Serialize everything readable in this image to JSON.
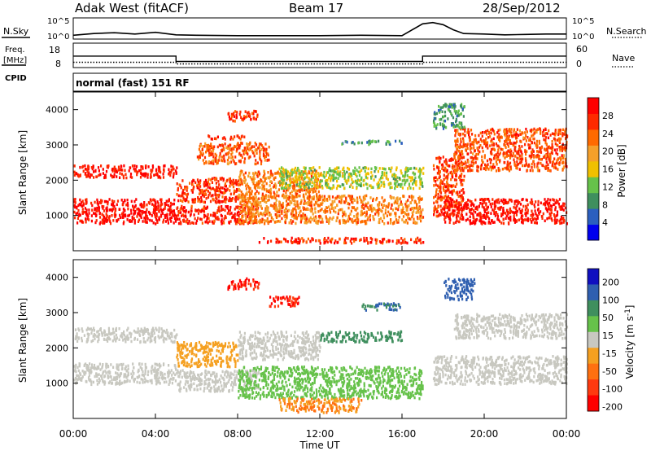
{
  "header": {
    "station": "Adak West (fitACF)",
    "beam": "Beam 17",
    "date": "28/Sep/2012"
  },
  "colors": {
    "power_scale": [
      "#0000ee",
      "#2b5fbf",
      "#3f8f5e",
      "#66c24a",
      "#f0c000",
      "#f5a02a",
      "#ff6a00",
      "#ff2a00",
      "#ff0000"
    ],
    "velocity_scale": [
      "#1010c0",
      "#2f5fb0",
      "#3f8f5e",
      "#66c24a",
      "#c8c8c0",
      "#f5a020",
      "#ff7010",
      "#ff3a10",
      "#ff0000"
    ],
    "ground_scatter": "#c8c8c0"
  },
  "chart_data": [
    {
      "type": "line",
      "name": "nsky-nsearch",
      "label_left": "N.Sky",
      "label_right": "N.Search",
      "yticks": [
        "10^0",
        "10^5"
      ],
      "x": [
        0,
        1,
        2,
        3,
        4,
        5,
        6,
        8,
        10,
        12,
        14,
        16,
        17,
        17.5,
        18,
        18.5,
        19,
        20,
        21,
        22,
        23,
        24
      ],
      "nsky_log10": [
        0.9,
        1.3,
        1.5,
        1.2,
        1.6,
        1.0,
        0.9,
        0.8,
        0.8,
        0.8,
        0.9,
        0.8,
        3.6,
        3.9,
        3.4,
        2.2,
        1.3,
        1.2,
        1.0,
        1.1,
        1.2,
        1.2
      ],
      "xlim": [
        0,
        24
      ],
      "ylim": [
        0,
        5
      ]
    },
    {
      "type": "line",
      "name": "freq-nave",
      "label_left": "Freq. [MHz]",
      "label_right": "Nave",
      "yticks_left": [
        "8",
        "18"
      ],
      "yticks_right": [
        "0",
        "60"
      ],
      "freq_x": [
        0,
        5,
        5,
        17,
        17,
        24
      ],
      "freq_y": [
        12.7,
        12.7,
        10.5,
        10.5,
        12.7,
        12.7
      ],
      "nave_x": [
        0,
        5,
        5,
        17,
        17,
        24
      ],
      "nave_y": [
        13,
        13,
        9,
        9,
        13,
        13
      ],
      "xlim": [
        0,
        24
      ]
    },
    {
      "type": "heatmap",
      "name": "power",
      "ylabel": "Slant Range [km]",
      "yticks": [
        1000,
        2000,
        3000,
        4000
      ],
      "ylim": [
        0,
        4500
      ],
      "xlim": [
        0,
        24
      ],
      "colorbar_label": "Power [dB]",
      "colorbar_ticks": [
        4,
        8,
        12,
        16,
        20,
        24,
        28
      ],
      "bands": [
        {
          "x": [
            0,
            5
          ],
          "y": [
            800,
            1500
          ],
          "value": 30
        },
        {
          "x": [
            0,
            5
          ],
          "y": [
            2100,
            2450
          ],
          "value": 29
        },
        {
          "x": [
            5,
            9
          ],
          "y": [
            800,
            1300
          ],
          "value": 28
        },
        {
          "x": [
            5,
            8
          ],
          "y": [
            1400,
            2100
          ],
          "value": 27
        },
        {
          "x": [
            6,
            9.5
          ],
          "y": [
            2500,
            3100
          ],
          "value": 24
        },
        {
          "x": [
            8,
            12
          ],
          "y": [
            1500,
            2300
          ],
          "value": 22
        },
        {
          "x": [
            6.5,
            8.5
          ],
          "y": [
            3200,
            3300
          ],
          "value": 26
        },
        {
          "x": [
            7.5,
            9
          ],
          "y": [
            3700,
            4000
          ],
          "value": 26
        },
        {
          "x": [
            8,
            17
          ],
          "y": [
            800,
            1600
          ],
          "value": 22
        },
        {
          "x": [
            9,
            17
          ],
          "y": [
            250,
            400
          ],
          "value": 27
        },
        {
          "x": [
            10,
            17
          ],
          "y": [
            1800,
            2400
          ],
          "value": 14
        },
        {
          "x": [
            13,
            16
          ],
          "y": [
            3050,
            3150
          ],
          "value": 8
        },
        {
          "x": [
            17.5,
            19
          ],
          "y": [
            1000,
            2700
          ],
          "value": 26
        },
        {
          "x": [
            18,
            24
          ],
          "y": [
            800,
            1500
          ],
          "value": 29
        },
        {
          "x": [
            18.5,
            24
          ],
          "y": [
            2300,
            3500
          ],
          "value": 25
        },
        {
          "x": [
            17.5,
            19
          ],
          "y": [
            3500,
            4200
          ],
          "value": 10
        }
      ]
    },
    {
      "type": "heatmap",
      "name": "velocity",
      "ylabel": "Slant Range [km]",
      "yticks": [
        1000,
        2000,
        3000,
        4000
      ],
      "ylim": [
        0,
        4500
      ],
      "xlim": [
        0,
        24
      ],
      "xlabel": "Time UT",
      "xticks": [
        "00:00",
        "04:00",
        "08:00",
        "12:00",
        "16:00",
        "20:00",
        "00:00"
      ],
      "colorbar_label": "Velocity [m s^-1]",
      "colorbar_ticks": [
        200,
        100,
        50,
        15,
        -15,
        -50,
        -100,
        -200
      ],
      "bands": [
        {
          "x": [
            0,
            5
          ],
          "y": [
            1000,
            1600
          ],
          "value": 0
        },
        {
          "x": [
            0,
            5
          ],
          "y": [
            2200,
            2600
          ],
          "value": 0
        },
        {
          "x": [
            5,
            9
          ],
          "y": [
            800,
            1400
          ],
          "value": 0
        },
        {
          "x": [
            5,
            8
          ],
          "y": [
            1500,
            2200
          ],
          "value": -40
        },
        {
          "x": [
            8,
            12
          ],
          "y": [
            1700,
            2500
          ],
          "value": 0
        },
        {
          "x": [
            8,
            17
          ],
          "y": [
            600,
            1500
          ],
          "value": 30
        },
        {
          "x": [
            7.5,
            9
          ],
          "y": [
            3700,
            4000
          ],
          "value": -200
        },
        {
          "x": [
            9.5,
            11
          ],
          "y": [
            3200,
            3500
          ],
          "value": -200
        },
        {
          "x": [
            12,
            16
          ],
          "y": [
            2200,
            2500
          ],
          "value": 60
        },
        {
          "x": [
            14,
            16
          ],
          "y": [
            3100,
            3300
          ],
          "value": 100
        },
        {
          "x": [
            10,
            14
          ],
          "y": [
            200,
            600
          ],
          "value": -50
        },
        {
          "x": [
            17.5,
            24
          ],
          "y": [
            1000,
            1800
          ],
          "value": 0
        },
        {
          "x": [
            18.5,
            24
          ],
          "y": [
            2300,
            3000
          ],
          "value": 0
        },
        {
          "x": [
            18,
            19.5
          ],
          "y": [
            3400,
            4000
          ],
          "value": 150
        }
      ]
    }
  ],
  "cpid": {
    "label": "CPID",
    "value": "normal (fast) 151 RF"
  }
}
